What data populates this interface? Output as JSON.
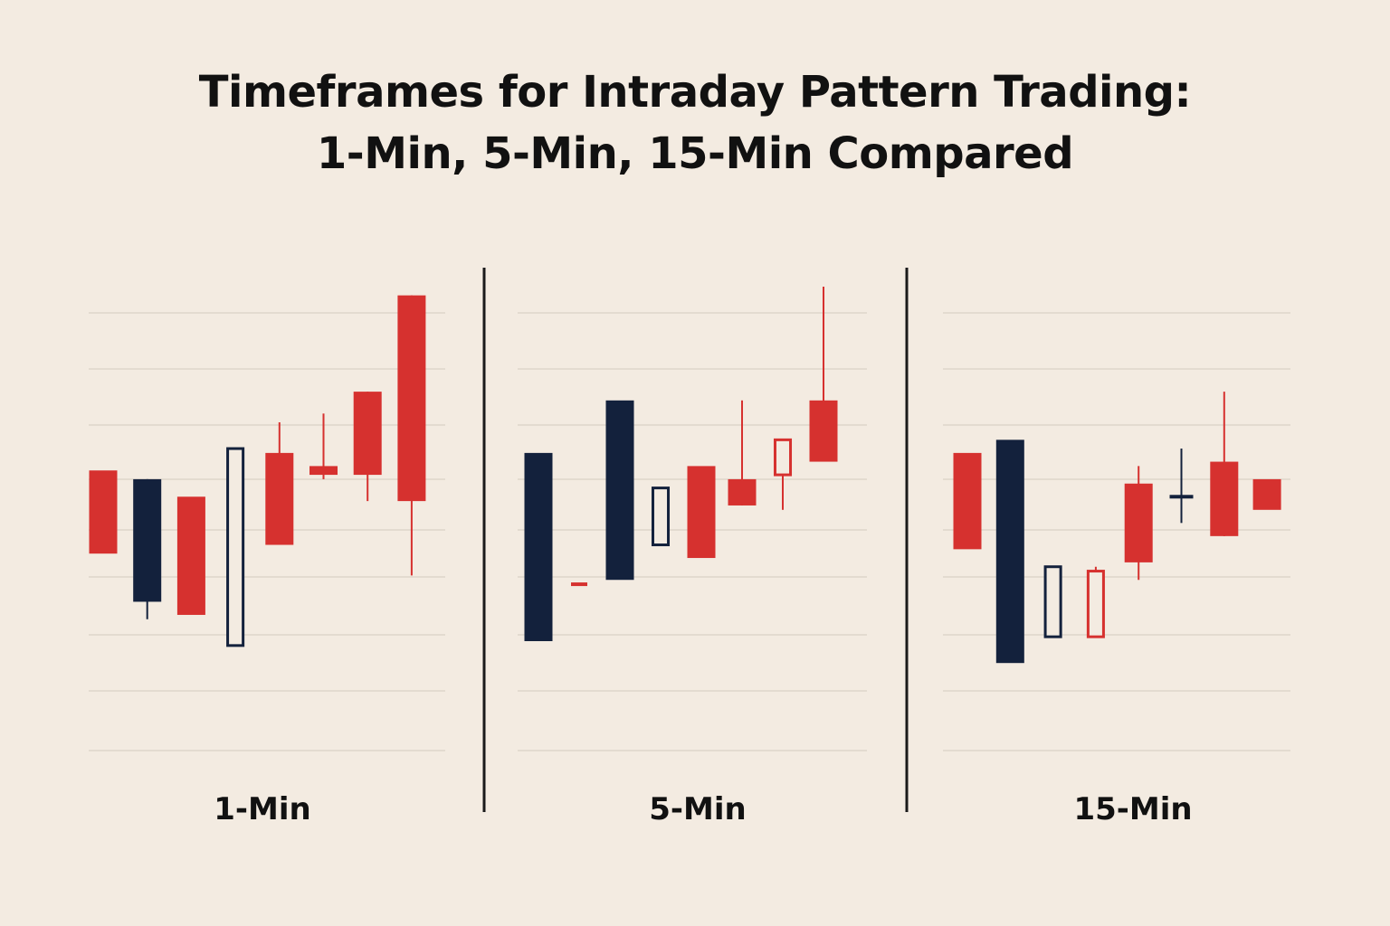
{
  "title": {
    "line1": "Timeframes for Intraday Pattern Trading:",
    "line2": "1-Min, 5-Min, 15-Min Compared"
  },
  "colors": {
    "background": "#f3ebe1",
    "bullish_red": "#d6312f",
    "bearish_navy": "#13213c",
    "gridline": "#d9d1c7",
    "divider": "#1a1a1a"
  },
  "chart_data": [
    {
      "type": "candlestick",
      "label": "1-Min",
      "grid": true,
      "ylim": [
        0,
        100
      ],
      "candles": [
        {
          "open": 45,
          "close": 64,
          "high": 64,
          "low": 45,
          "color": "red",
          "style": "filled"
        },
        {
          "open": 62,
          "close": 34,
          "high": 62,
          "low": 30,
          "color": "navy",
          "style": "filled"
        },
        {
          "open": 58,
          "close": 31,
          "high": 58,
          "low": 31,
          "color": "red",
          "style": "filled"
        },
        {
          "open": 69,
          "close": 24,
          "high": 69,
          "low": 24,
          "color": "navy",
          "style": "hollow"
        },
        {
          "open": 47,
          "close": 68,
          "high": 75,
          "low": 47,
          "color": "red",
          "style": "filled"
        },
        {
          "open": 65,
          "close": 63,
          "high": 77,
          "low": 62,
          "color": "red",
          "style": "filled"
        },
        {
          "open": 63,
          "close": 82,
          "high": 82,
          "low": 57,
          "color": "red",
          "style": "filled"
        },
        {
          "open": 57,
          "close": 104,
          "high": 104,
          "low": 40,
          "color": "red",
          "style": "filled"
        }
      ]
    },
    {
      "type": "candlestick",
      "label": "5-Min",
      "grid": true,
      "ylim": [
        0,
        100
      ],
      "candles": [
        {
          "open": 68,
          "close": 25,
          "high": 68,
          "low": 25,
          "color": "navy",
          "style": "filled"
        },
        {
          "open": 38,
          "close": 38,
          "high": 38,
          "low": 38,
          "color": "red",
          "style": "filled"
        },
        {
          "open": 80,
          "close": 39,
          "high": 80,
          "low": 39,
          "color": "navy",
          "style": "filled"
        },
        {
          "open": 47,
          "close": 60,
          "high": 60,
          "low": 47,
          "color": "navy",
          "style": "hollow"
        },
        {
          "open": 44,
          "close": 65,
          "high": 65,
          "low": 44,
          "color": "red",
          "style": "filled"
        },
        {
          "open": 56,
          "close": 62,
          "high": 80,
          "low": 56,
          "color": "red",
          "style": "filled"
        },
        {
          "open": 63,
          "close": 71,
          "high": 71,
          "low": 55,
          "color": "red",
          "style": "hollow"
        },
        {
          "open": 66,
          "close": 80,
          "high": 106,
          "low": 66,
          "color": "red",
          "style": "filled"
        }
      ]
    },
    {
      "type": "candlestick",
      "label": "15-Min",
      "grid": true,
      "ylim": [
        0,
        100
      ],
      "candles": [
        {
          "open": 68,
          "close": 46,
          "high": 68,
          "low": 46,
          "color": "red",
          "style": "filled"
        },
        {
          "open": 71,
          "close": 20,
          "high": 71,
          "low": 20,
          "color": "navy",
          "style": "filled"
        },
        {
          "open": 42,
          "close": 26,
          "high": 42,
          "low": 26,
          "color": "navy",
          "style": "hollow"
        },
        {
          "open": 41,
          "close": 26,
          "high": 42,
          "low": 26,
          "color": "red",
          "style": "hollow"
        },
        {
          "open": 43,
          "close": 61,
          "high": 65,
          "low": 39,
          "color": "red",
          "style": "filled"
        },
        {
          "open": 58,
          "close": 58,
          "high": 69,
          "low": 52,
          "color": "navy",
          "style": "filled"
        },
        {
          "open": 49,
          "close": 66,
          "high": 82,
          "low": 49,
          "color": "red",
          "style": "filled"
        },
        {
          "open": 55,
          "close": 62,
          "high": 62,
          "low": 55,
          "color": "red",
          "style": "filled"
        }
      ]
    }
  ]
}
